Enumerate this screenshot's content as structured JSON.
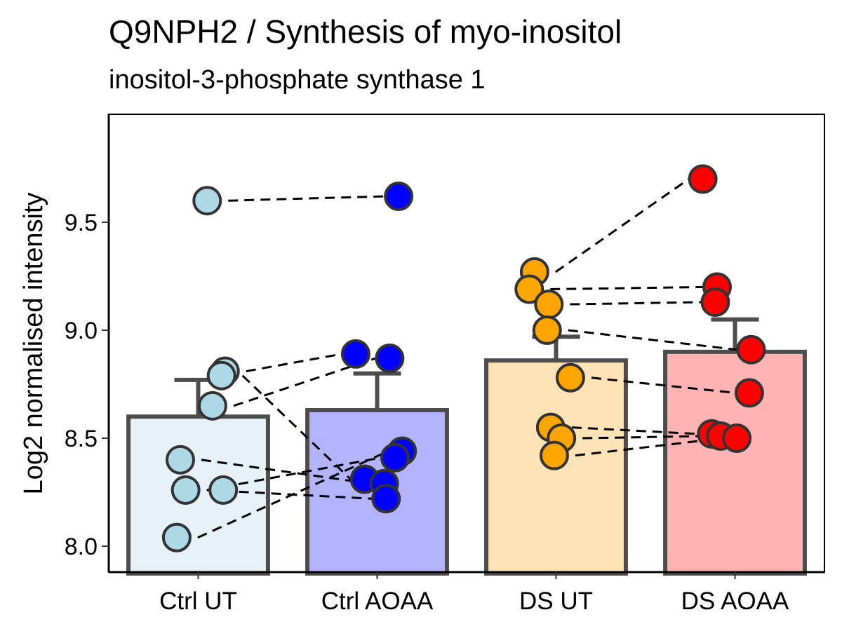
{
  "chart_data": {
    "type": "bar",
    "title": "Q9NPH2 / Synthesis of myo-inositol",
    "subtitle": "inositol-3-phosphate synthase 1",
    "xlabel": "",
    "ylabel": "Log2 normalised intensity",
    "ylim": [
      7.88,
      10.0
    ],
    "yticks": [
      8.0,
      8.5,
      9.0,
      9.5
    ],
    "ytick_labels": [
      "8.0",
      "8.5",
      "9.0",
      "9.5"
    ],
    "categories": [
      "Ctrl UT",
      "Ctrl AOAA",
      "DS UT",
      "DS AOAA"
    ],
    "means": [
      8.6,
      8.63,
      8.86,
      8.9
    ],
    "error_upper": [
      8.77,
      8.8,
      8.97,
      9.05
    ],
    "bar_fill_colors": [
      "#e6f2f8",
      "#b3b3ff",
      "#fde3b5",
      "#ffb3b3"
    ],
    "point_colors": [
      "#add8e6",
      "#0000ff",
      "#ffa500",
      "#ff0000"
    ],
    "points": [
      [
        9.6,
        8.81,
        8.79,
        8.65,
        8.4,
        8.26,
        8.26,
        8.04
      ],
      [
        9.62,
        8.89,
        8.87,
        8.44,
        8.41,
        8.31,
        8.29,
        8.22
      ],
      [
        9.27,
        9.19,
        9.12,
        9.0,
        8.78,
        8.55,
        8.5,
        8.42
      ],
      [
        9.7,
        9.2,
        9.13,
        8.91,
        8.71,
        8.52,
        8.51,
        8.5
      ]
    ],
    "pairs": [
      {
        "from_group": 0,
        "to_group": 1,
        "from": [
          9.6,
          8.81,
          8.79,
          8.65,
          8.4,
          8.26,
          8.26,
          8.04
        ],
        "to": [
          9.62,
          8.89,
          8.31,
          8.87,
          8.29,
          8.22,
          8.41,
          8.44
        ]
      },
      {
        "from_group": 2,
        "to_group": 3,
        "from": [
          9.27,
          9.19,
          9.12,
          9.0,
          8.78,
          8.55,
          8.5,
          8.42
        ],
        "to": [
          9.7,
          9.2,
          9.13,
          8.91,
          8.71,
          8.52,
          8.51,
          8.5
        ]
      }
    ],
    "grid": false,
    "legend": "none"
  }
}
